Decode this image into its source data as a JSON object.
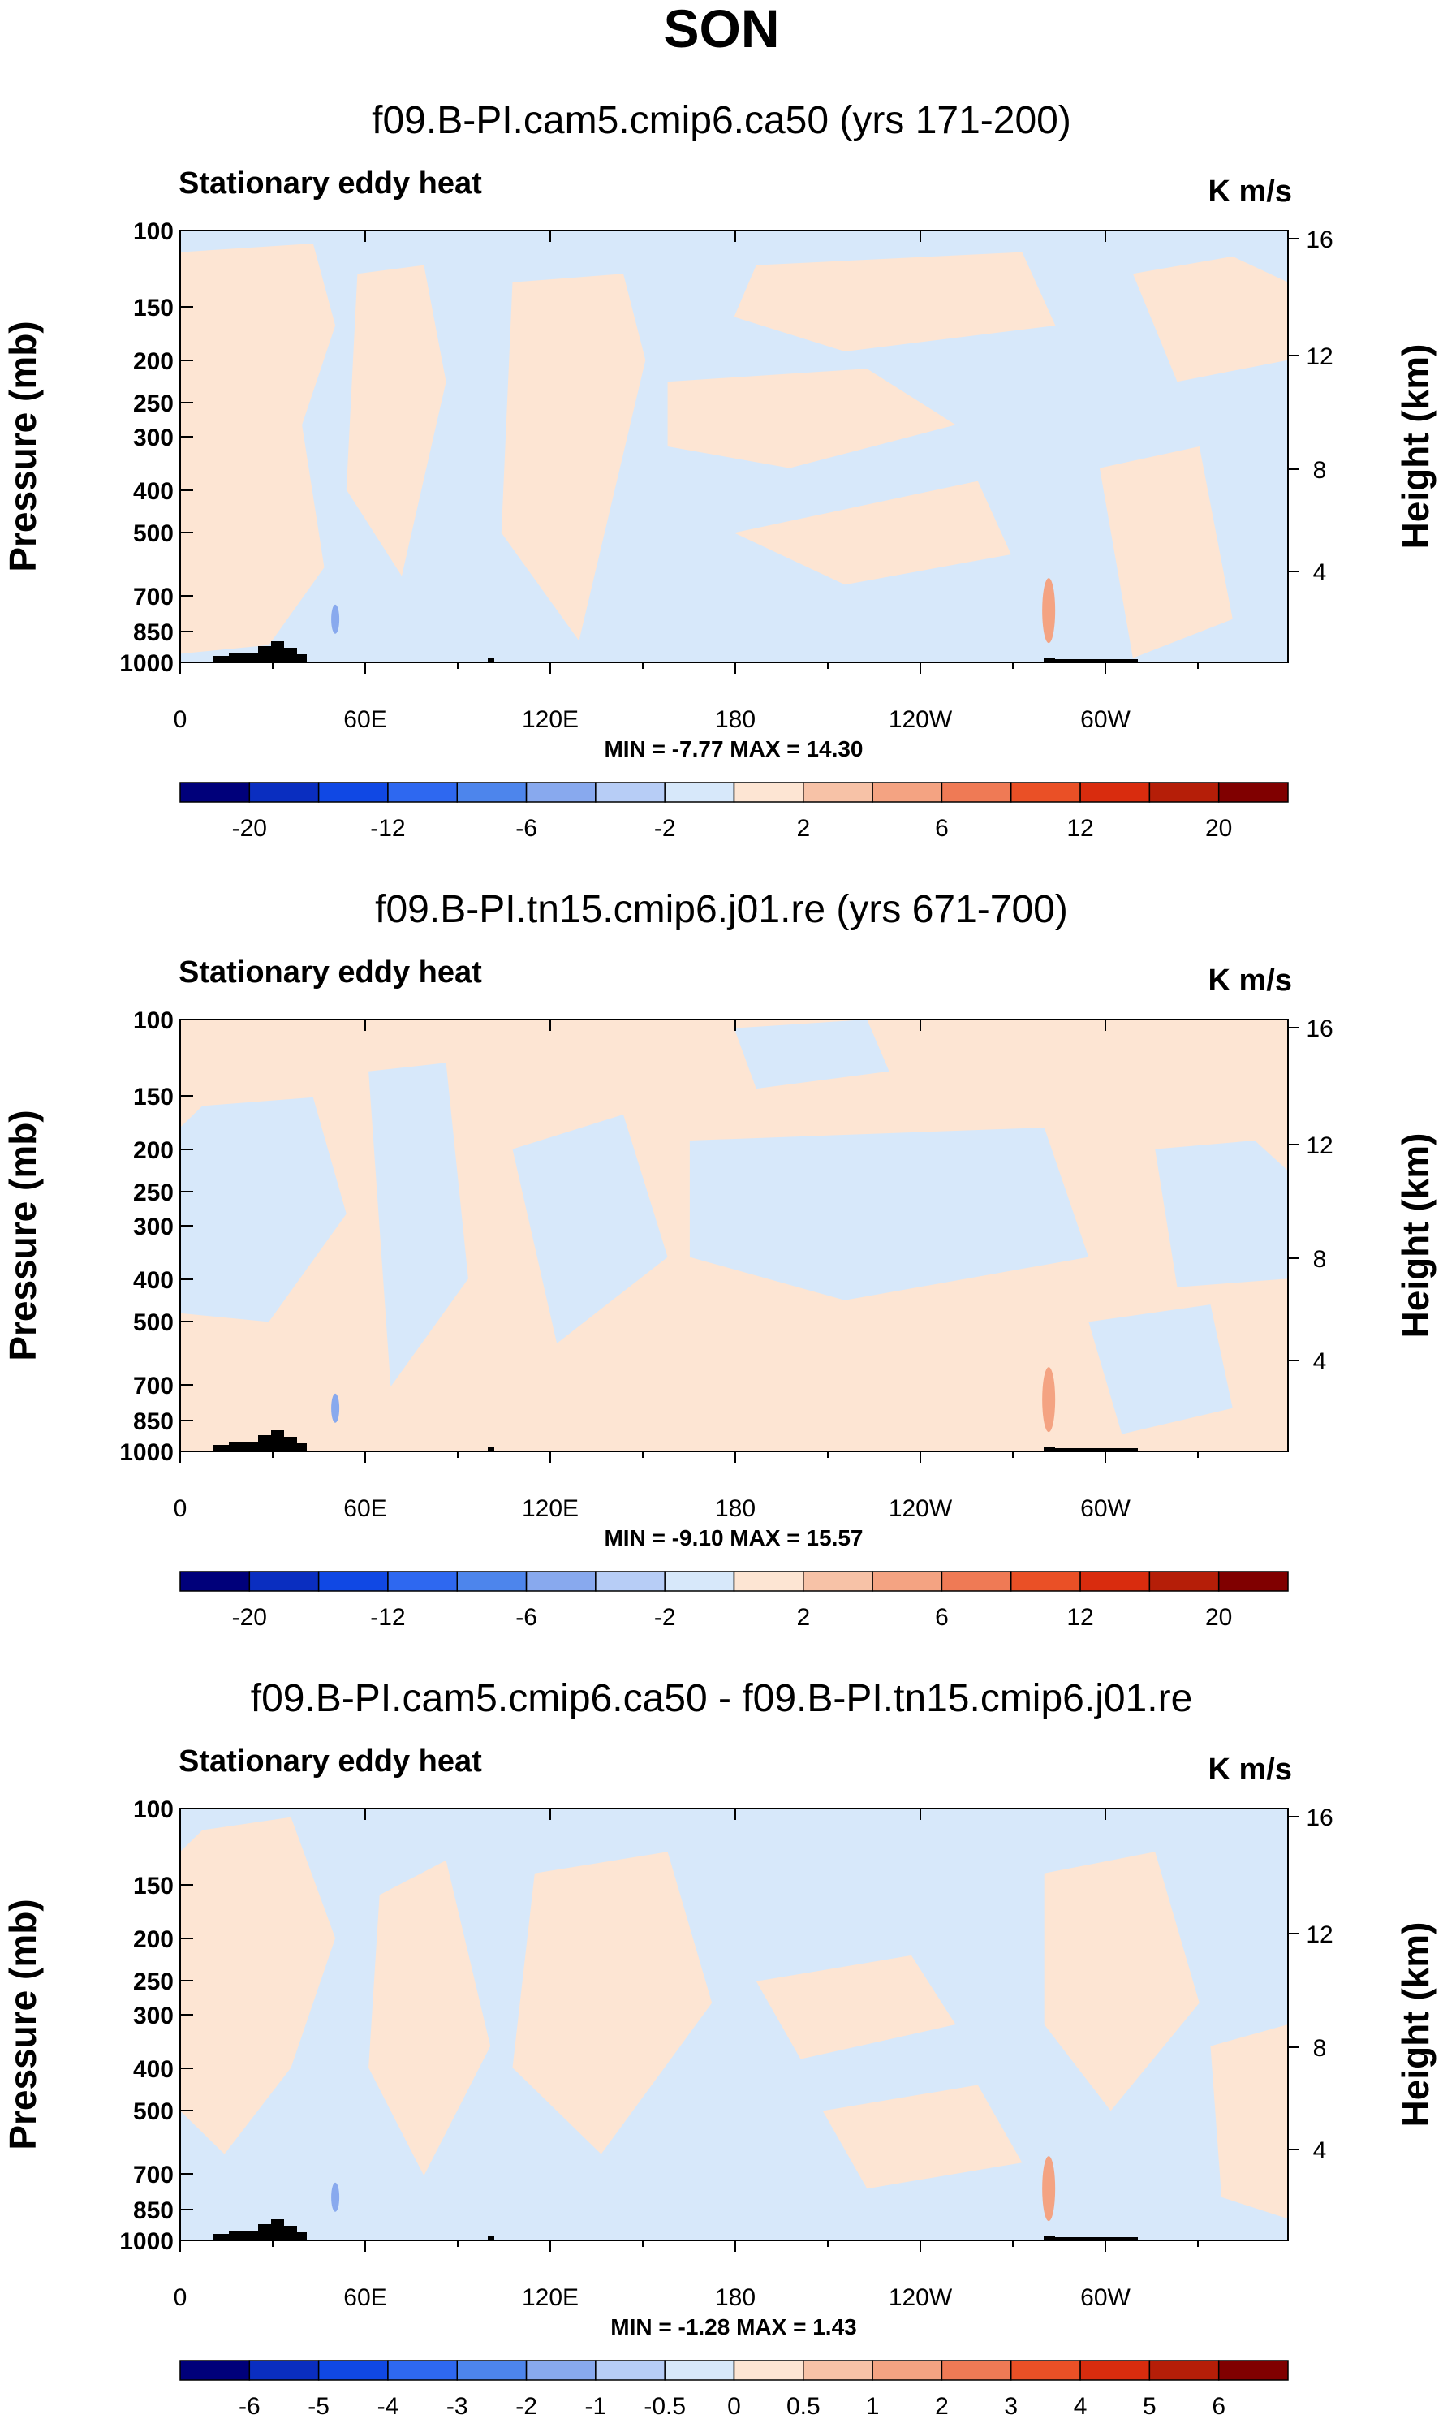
{
  "figure_title": "SON",
  "chart_data": [
    {
      "type": "heatmap",
      "title": "f09.B-PI.cam5.cmip6.ca50 (yrs 171-200)",
      "left_label": "Stationary eddy heat",
      "units": "K m/s",
      "ylabel": "Pressure (mb)",
      "ylabel_right": "Height (km)",
      "x_ticks": [
        "0",
        "60E",
        "120E",
        "180",
        "120W",
        "60W"
      ],
      "y_ticks": [
        "100",
        "150",
        "200",
        "250",
        "300",
        "400",
        "500",
        "700",
        "850",
        "1000"
      ],
      "y_ticks_right": [
        "16",
        "12",
        "8",
        "4"
      ],
      "stats": "MIN = -7.77  MAX = 14.30",
      "colorbar": {
        "labels": [
          "-20",
          "-12",
          "-6",
          "-2",
          "2",
          "6",
          "12",
          "20"
        ],
        "colors": [
          "#00007a",
          "#0a2ec0",
          "#1048e4",
          "#2e68f0",
          "#4d85ec",
          "#88a9ee",
          "#b7cdf6",
          "#d7e8fa",
          "#fde5d3",
          "#f7c2a7",
          "#f4a382",
          "#ef7a55",
          "#ea5026",
          "#d92c0e",
          "#b51e08",
          "#800000"
        ]
      },
      "field": {
        "base_color": "#d7e8fa",
        "patch_color": "#fde5d3"
      }
    },
    {
      "type": "heatmap",
      "title": "f09.B-PI.tn15.cmip6.j01.re (yrs 671-700)",
      "left_label": "Stationary eddy heat",
      "units": "K m/s",
      "ylabel": "Pressure (mb)",
      "ylabel_right": "Height (km)",
      "x_ticks": [
        "0",
        "60E",
        "120E",
        "180",
        "120W",
        "60W"
      ],
      "y_ticks": [
        "100",
        "150",
        "200",
        "250",
        "300",
        "400",
        "500",
        "700",
        "850",
        "1000"
      ],
      "y_ticks_right": [
        "16",
        "12",
        "8",
        "4"
      ],
      "stats": "MIN = -9.10  MAX = 15.57",
      "colorbar": {
        "labels": [
          "-20",
          "-12",
          "-6",
          "-2",
          "2",
          "6",
          "12",
          "20"
        ],
        "colors": [
          "#00007a",
          "#0a2ec0",
          "#1048e4",
          "#2e68f0",
          "#4d85ec",
          "#88a9ee",
          "#b7cdf6",
          "#d7e8fa",
          "#fde5d3",
          "#f7c2a7",
          "#f4a382",
          "#ef7a55",
          "#ea5026",
          "#d92c0e",
          "#b51e08",
          "#800000"
        ]
      },
      "field": {
        "base_color": "#fde5d3",
        "patch_color": "#d7e8fa"
      }
    },
    {
      "type": "heatmap",
      "title": "f09.B-PI.cam5.cmip6.ca50 - f09.B-PI.tn15.cmip6.j01.re",
      "left_label": "Stationary eddy heat",
      "units": "K m/s",
      "ylabel": "Pressure (mb)",
      "ylabel_right": "Height (km)",
      "x_ticks": [
        "0",
        "60E",
        "120E",
        "180",
        "120W",
        "60W"
      ],
      "y_ticks": [
        "100",
        "150",
        "200",
        "250",
        "300",
        "400",
        "500",
        "700",
        "850",
        "1000"
      ],
      "y_ticks_right": [
        "16",
        "12",
        "8",
        "4"
      ],
      "stats": "MIN = -1.28  MAX =  1.43",
      "colorbar": {
        "labels": [
          "-6",
          "-5",
          "-4",
          "-3",
          "-2",
          "-1",
          "-0.5",
          "0",
          "0.5",
          "1",
          "2",
          "3",
          "4",
          "5",
          "6"
        ],
        "colors": [
          "#00007a",
          "#0a2ec0",
          "#1048e4",
          "#2e68f0",
          "#4d85ec",
          "#88a9ee",
          "#b7cdf6",
          "#d7e8fa",
          "#fde5d3",
          "#f7c2a7",
          "#f4a382",
          "#ef7a55",
          "#ea5026",
          "#d92c0e",
          "#b51e08",
          "#800000"
        ]
      },
      "field": {
        "base_color": "#d7e8fa",
        "patch_color": "#fde5d3"
      }
    }
  ]
}
